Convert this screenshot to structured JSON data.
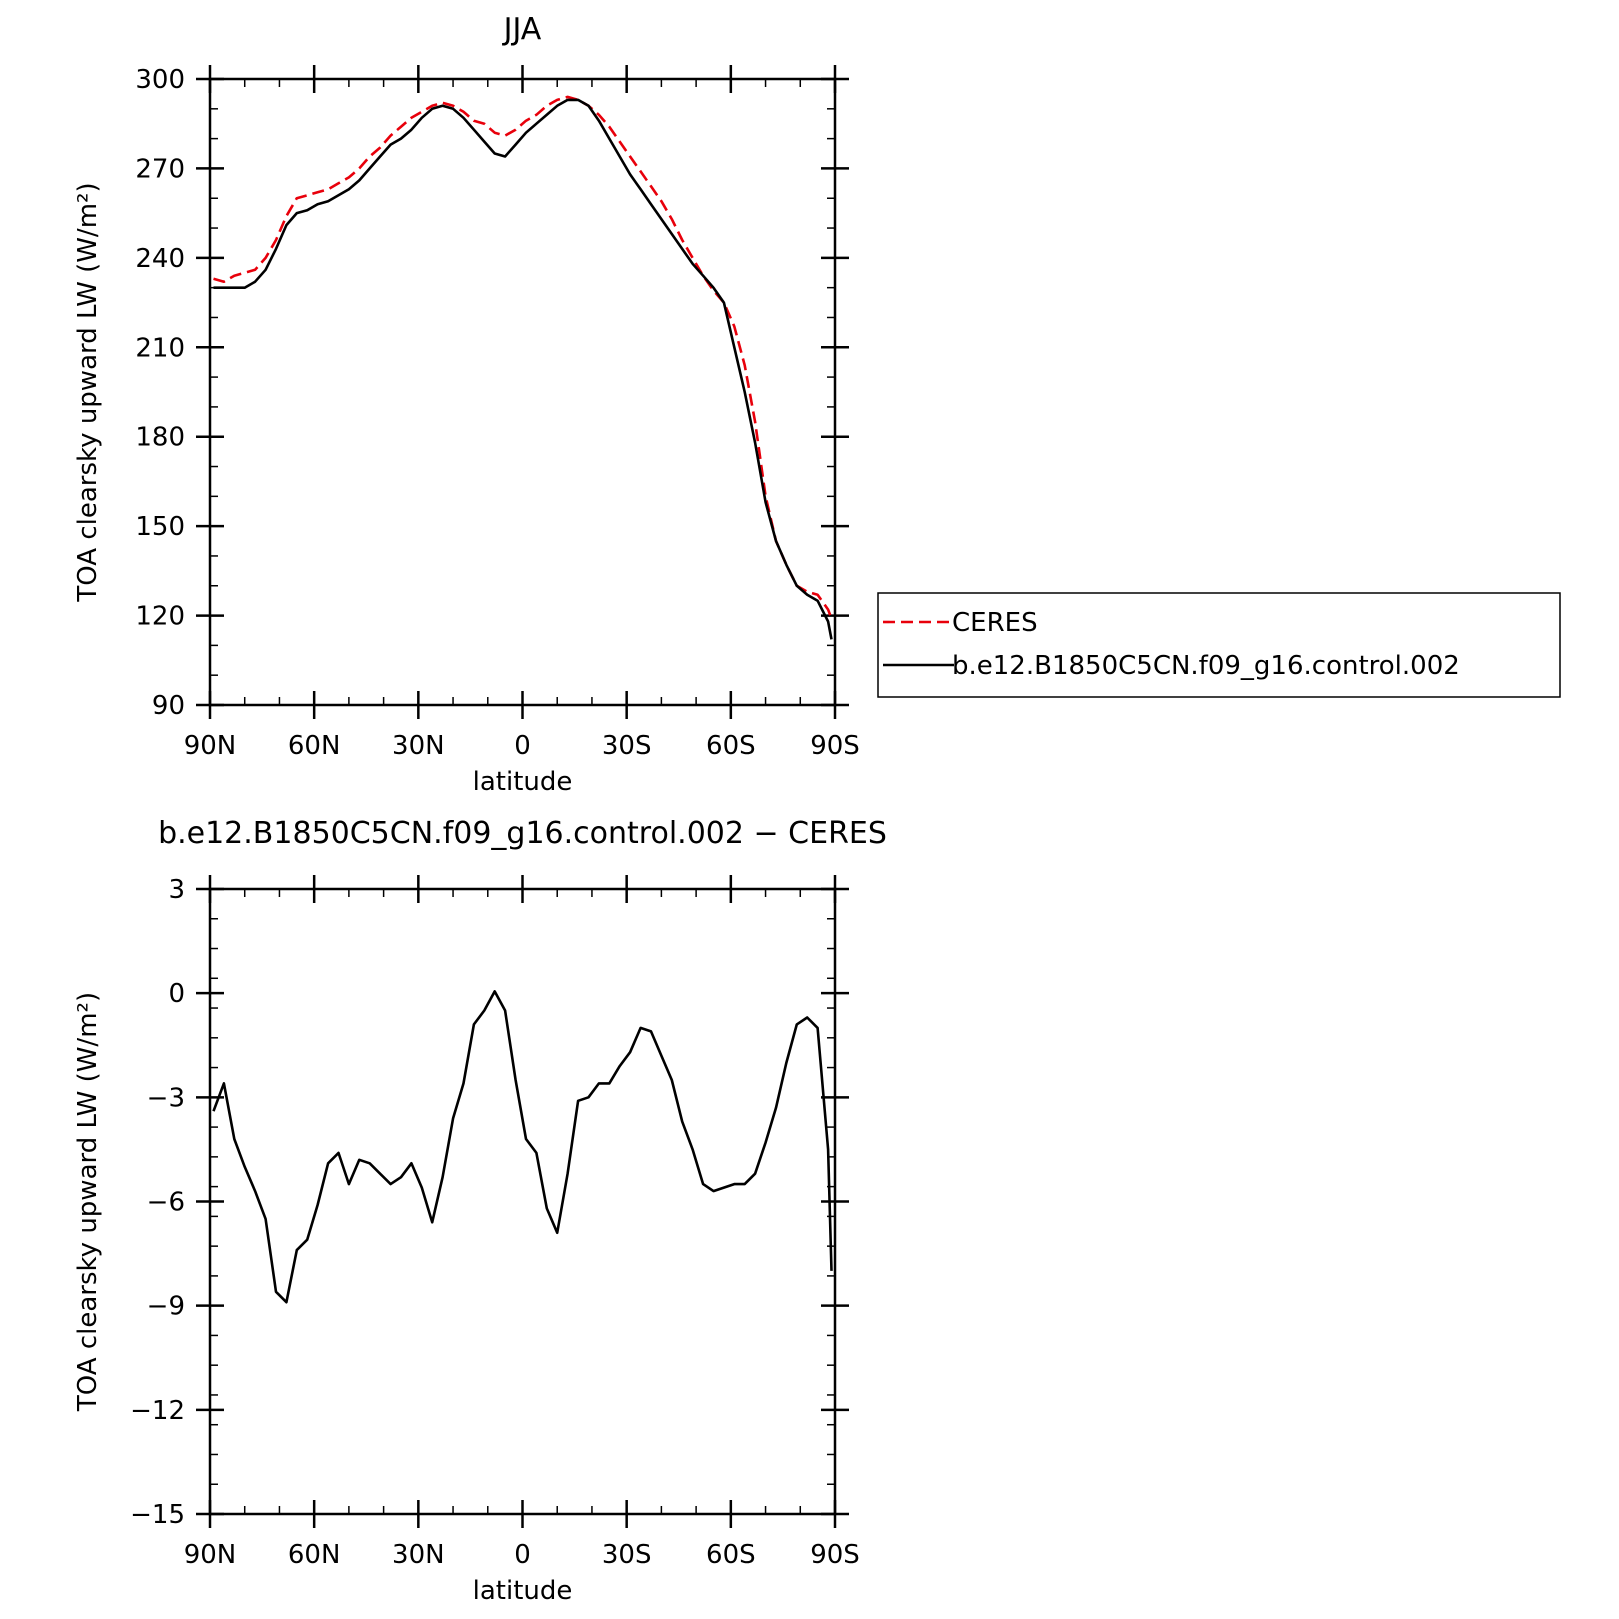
{
  "chart_data": [
    {
      "type": "line",
      "title": "JJA",
      "xlabel": "latitude",
      "ylabel": "TOA clearsky upward LW (W/m²)",
      "xlim": [
        90,
        -90
      ],
      "ylim": [
        90,
        300
      ],
      "xticks": [
        {
          "value": 90,
          "label": "90N"
        },
        {
          "value": 60,
          "label": "60N"
        },
        {
          "value": 30,
          "label": "30N"
        },
        {
          "value": 0,
          "label": "0"
        },
        {
          "value": -30,
          "label": "30S"
        },
        {
          "value": -60,
          "label": "60S"
        },
        {
          "value": -90,
          "label": "90S"
        }
      ],
      "yticks": [
        {
          "value": 300,
          "label": "300"
        },
        {
          "value": 270,
          "label": "270"
        },
        {
          "value": 240,
          "label": "240"
        },
        {
          "value": 210,
          "label": "210"
        },
        {
          "value": 180,
          "label": "180"
        },
        {
          "value": 150,
          "label": "150"
        },
        {
          "value": 120,
          "label": "120"
        },
        {
          "value": 90,
          "label": "90"
        }
      ],
      "legend": {
        "position": "right",
        "entries": [
          {
            "label": "CERES",
            "color": "#e8000b",
            "style": "dashed"
          },
          {
            "label": "b.e12.B1850C5CN.f09_g16.control.002",
            "color": "#000000",
            "style": "solid"
          }
        ]
      },
      "series": [
        {
          "name": "CERES",
          "color": "#e8000b",
          "style": "dashed",
          "x": [
            89,
            86,
            83,
            80,
            77,
            74,
            71,
            68,
            65,
            62,
            59,
            56,
            53,
            50,
            47,
            44,
            41,
            38,
            35,
            32,
            29,
            26,
            23,
            20,
            17,
            14,
            11,
            8,
            5,
            2,
            -1,
            -4,
            -7,
            -10,
            -13,
            -16,
            -19,
            -22,
            -25,
            -28,
            -31,
            -34,
            -37,
            -40,
            -43,
            -46,
            -49,
            -52,
            -55,
            -58,
            -61,
            -64,
            -67,
            -70,
            -73,
            -76,
            -79,
            -82,
            -85,
            -88,
            -89
          ],
          "y": [
            233,
            232,
            234,
            235,
            236,
            240,
            246,
            254,
            260,
            261,
            262,
            263,
            265,
            267,
            270,
            274,
            277,
            281,
            284,
            287,
            289,
            291,
            292,
            291,
            289,
            286,
            285,
            282,
            281,
            283,
            286,
            288,
            291,
            293,
            294,
            293,
            291,
            288,
            284,
            279,
            274,
            269,
            264,
            259,
            253,
            246,
            240,
            234,
            229,
            225,
            217,
            204,
            185,
            160,
            145,
            137,
            130,
            128,
            127,
            122,
            119
          ]
        },
        {
          "name": "b.e12.B1850C5CN.f09_g16.control.002",
          "color": "#000000",
          "style": "solid",
          "x": [
            89,
            86,
            83,
            80,
            77,
            74,
            71,
            68,
            65,
            62,
            59,
            56,
            53,
            50,
            47,
            44,
            41,
            38,
            35,
            32,
            29,
            26,
            23,
            20,
            17,
            14,
            11,
            8,
            5,
            2,
            -1,
            -4,
            -7,
            -10,
            -13,
            -16,
            -19,
            -22,
            -25,
            -28,
            -31,
            -34,
            -37,
            -40,
            -43,
            -46,
            -49,
            -52,
            -55,
            -58,
            -61,
            -64,
            -67,
            -70,
            -73,
            -76,
            -79,
            -82,
            -85,
            -88,
            -89
          ],
          "y": [
            230,
            230,
            230,
            230,
            232,
            236,
            243,
            251,
            255,
            256,
            258,
            259,
            261,
            263,
            266,
            270,
            274,
            278,
            280,
            283,
            287,
            290,
            291,
            290,
            287,
            283,
            279,
            275,
            274,
            278,
            282,
            285,
            288,
            291,
            293,
            293,
            291,
            286,
            280,
            274,
            268,
            263,
            258,
            253,
            248,
            243,
            238,
            234,
            230,
            225,
            210,
            195,
            178,
            158,
            145,
            137,
            130,
            127,
            125,
            118,
            112
          ]
        }
      ]
    },
    {
      "type": "line",
      "title": "b.e12.B1850C5CN.f09_g16.control.002 − CERES",
      "xlabel": "latitude",
      "ylabel": "TOA clearsky upward LW (W/m²)",
      "xlim": [
        90,
        -90
      ],
      "ylim": [
        -15,
        3
      ],
      "xticks": [
        {
          "value": 90,
          "label": "90N"
        },
        {
          "value": 60,
          "label": "60N"
        },
        {
          "value": 30,
          "label": "30N"
        },
        {
          "value": 0,
          "label": "0"
        },
        {
          "value": -30,
          "label": "30S"
        },
        {
          "value": -60,
          "label": "60S"
        },
        {
          "value": -90,
          "label": "90S"
        }
      ],
      "yticks": [
        {
          "value": 3,
          "label": "3"
        },
        {
          "value": 0,
          "label": "0"
        },
        {
          "value": -3,
          "label": "−3"
        },
        {
          "value": -6,
          "label": "−6"
        },
        {
          "value": -9,
          "label": "−9"
        },
        {
          "value": -12,
          "label": "−12"
        },
        {
          "value": -15,
          "label": "−15"
        }
      ],
      "series": [
        {
          "color": "#000000",
          "style": "solid",
          "x": [
            89,
            86,
            83,
            80,
            77,
            74,
            71,
            68,
            65,
            62,
            59,
            56,
            53,
            50,
            47,
            44,
            41,
            38,
            35,
            32,
            29,
            26,
            23,
            20,
            17,
            14,
            11,
            8,
            5,
            2,
            -1,
            -4,
            -7,
            -10,
            -13,
            -16,
            -19,
            -22,
            -25,
            -28,
            -31,
            -34,
            -37,
            -40,
            -43,
            -46,
            -49,
            -52,
            -55,
            -58,
            -61,
            -64,
            -67,
            -70,
            -73,
            -76,
            -79,
            -82,
            -85,
            -88,
            -89
          ],
          "y": [
            -3.4,
            -2.6,
            -4.2,
            -5.0,
            -5.7,
            -6.5,
            -8.6,
            -8.9,
            -7.4,
            -7.1,
            -6.1,
            -4.9,
            -4.6,
            -5.5,
            -4.8,
            -4.9,
            -5.2,
            -5.5,
            -5.3,
            -4.9,
            -5.6,
            -6.6,
            -5.3,
            -3.6,
            -2.6,
            -0.9,
            -0.5,
            0.05,
            -0.5,
            -2.5,
            -4.2,
            -4.6,
            -6.2,
            -6.9,
            -5.2,
            -3.1,
            -3.0,
            -2.6,
            -2.6,
            -2.1,
            -1.7,
            -1.0,
            -1.1,
            -1.8,
            -2.5,
            -3.7,
            -4.5,
            -5.5,
            -5.7,
            -5.6,
            -5.5,
            -5.5,
            -5.2,
            -4.3,
            -3.3,
            -2.0,
            -0.9,
            -0.7,
            -1.0,
            -4.5,
            -8.0
          ]
        }
      ]
    }
  ]
}
